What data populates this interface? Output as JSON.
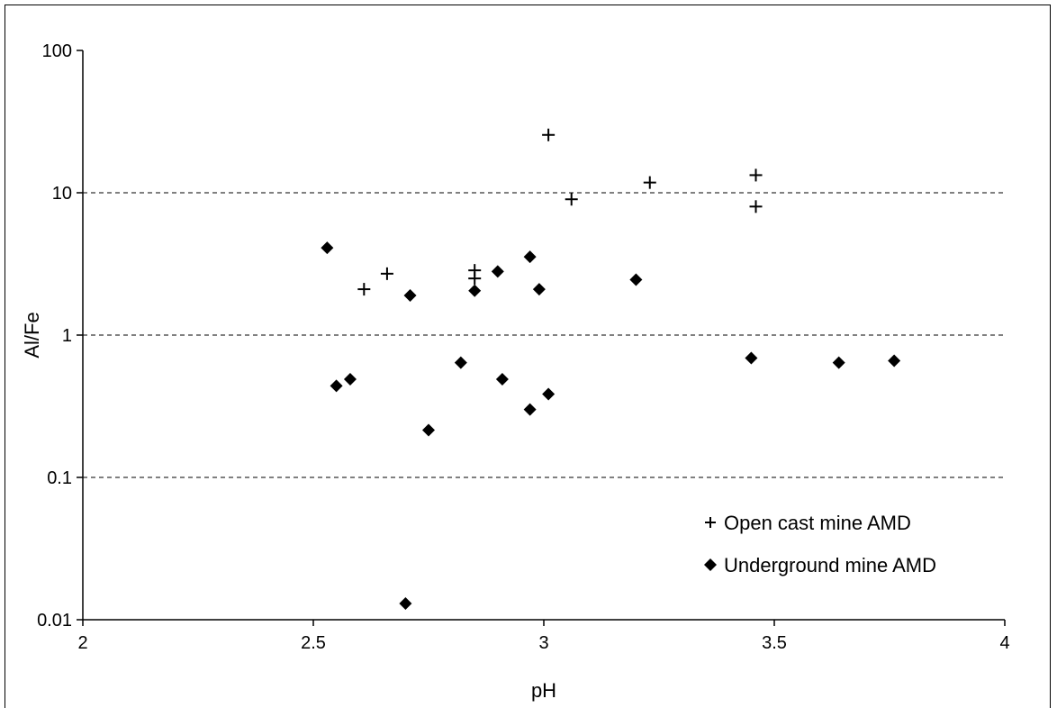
{
  "chart_data": {
    "type": "scatter",
    "title": "",
    "xlabel": "pH",
    "ylabel": "Al/Fe",
    "xlim": [
      2,
      4
    ],
    "ylim": [
      0.01,
      100
    ],
    "yscale": "log",
    "x_ticks": [
      "2",
      "2.5",
      "3",
      "3.5",
      "4"
    ],
    "y_ticks": [
      "0.01",
      "0.1",
      "1",
      "10",
      "100"
    ],
    "grid": "horizontal dashed",
    "legend_position": "bottom-right",
    "series": [
      {
        "name": "Open cast mine AMD",
        "marker": "plus",
        "color": "#000000",
        "points": [
          [
            2.61,
            2.1
          ],
          [
            2.66,
            2.7
          ],
          [
            2.85,
            2.85
          ],
          [
            2.85,
            2.5
          ],
          [
            3.01,
            25.5
          ],
          [
            3.06,
            9.0
          ],
          [
            3.23,
            11.8
          ],
          [
            3.46,
            13.3
          ],
          [
            3.46,
            8.0
          ]
        ]
      },
      {
        "name": "Underground mine AMD",
        "marker": "diamond",
        "color": "#000000",
        "points": [
          [
            2.53,
            4.1
          ],
          [
            2.55,
            0.44
          ],
          [
            2.58,
            0.49
          ],
          [
            2.7,
            0.013
          ],
          [
            2.71,
            1.9
          ],
          [
            2.75,
            0.215
          ],
          [
            2.82,
            0.64
          ],
          [
            2.85,
            2.05
          ],
          [
            2.9,
            2.8
          ],
          [
            2.91,
            0.49
          ],
          [
            2.97,
            3.55
          ],
          [
            2.97,
            0.3
          ],
          [
            2.99,
            2.1
          ],
          [
            3.01,
            0.385
          ],
          [
            3.2,
            2.45
          ],
          [
            3.45,
            0.69
          ],
          [
            3.64,
            0.64
          ],
          [
            3.76,
            0.66
          ]
        ]
      }
    ]
  }
}
